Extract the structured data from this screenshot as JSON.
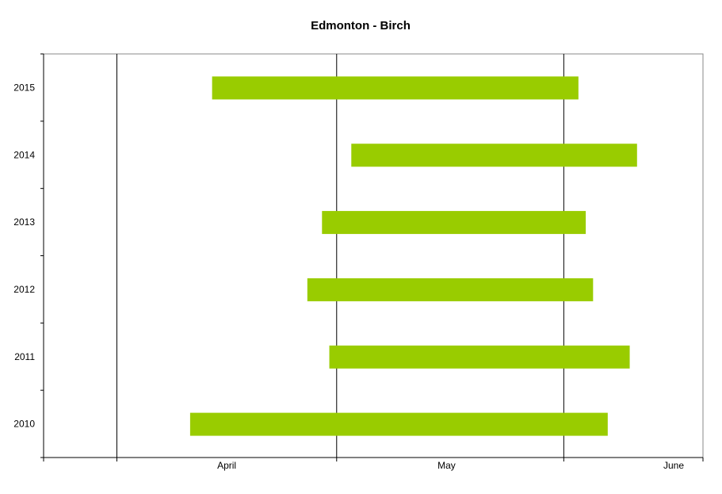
{
  "chart_data": {
    "type": "bar",
    "orientation": "horizontal-range",
    "title": "Edmonton - Birch",
    "xlabel": "",
    "ylabel": "",
    "x_unit": "day-of-year",
    "x_ticks": [
      "April",
      "May",
      "June"
    ],
    "x_range": [
      81,
      171
    ],
    "grid": "vertical month boundaries",
    "categories": [
      "2015",
      "2014",
      "2013",
      "2012",
      "2011",
      "2010"
    ],
    "series": [
      {
        "color": "#99cc00",
        "ranges": [
          {
            "year": "2015",
            "start": "April 14",
            "end": "June 3"
          },
          {
            "year": "2014",
            "start": "May 3",
            "end": "June 11"
          },
          {
            "year": "2013",
            "start": "April 29",
            "end": "June 4"
          },
          {
            "year": "2012",
            "start": "April 27",
            "end": "June 5"
          },
          {
            "year": "2011",
            "start": "April 30",
            "end": "June 10"
          },
          {
            "year": "2010",
            "start": "April 11",
            "end": "June 7"
          }
        ],
        "start_doy": [
          104,
          123,
          119,
          117,
          120,
          101
        ],
        "end_doy": [
          154,
          162,
          155,
          156,
          161,
          158
        ]
      }
    ]
  }
}
